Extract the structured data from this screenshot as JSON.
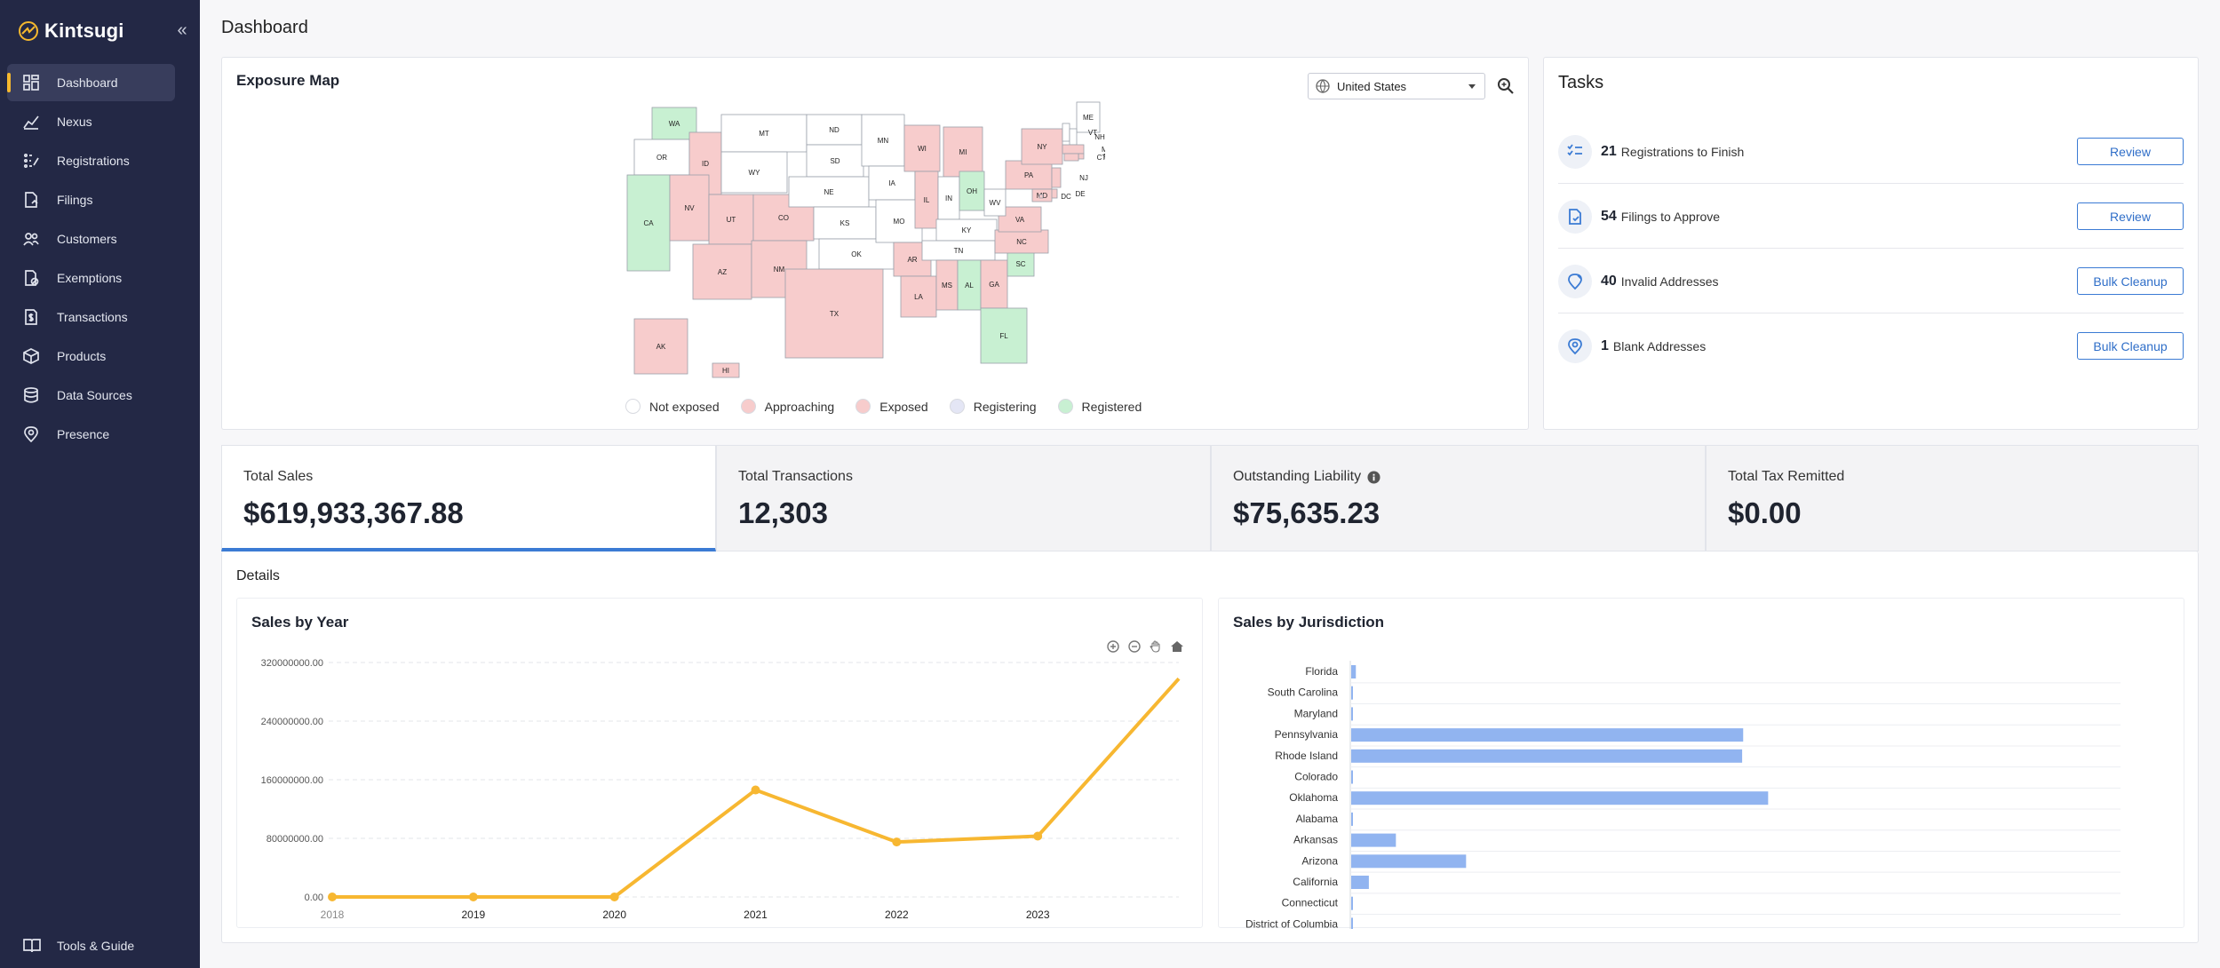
{
  "app": {
    "name": "Kintsugi"
  },
  "page": {
    "title": "Dashboard"
  },
  "sidebar": {
    "items": [
      {
        "label": "Dashboard",
        "icon": "dashboard-icon",
        "active": true
      },
      {
        "label": "Nexus",
        "icon": "trending-icon"
      },
      {
        "label": "Registrations",
        "icon": "registrations-icon"
      },
      {
        "label": "Filings",
        "icon": "filings-icon"
      },
      {
        "label": "Customers",
        "icon": "customers-icon"
      },
      {
        "label": "Exemptions",
        "icon": "exemptions-icon"
      },
      {
        "label": "Transactions",
        "icon": "transactions-icon"
      },
      {
        "label": "Products",
        "icon": "products-icon"
      },
      {
        "label": "Data Sources",
        "icon": "database-icon"
      },
      {
        "label": "Presence",
        "icon": "location-icon"
      }
    ],
    "bottom": {
      "label": "Tools & Guide",
      "icon": "book-icon"
    }
  },
  "exposure_map": {
    "title": "Exposure Map",
    "country": "United States",
    "legend": [
      {
        "label": "Not exposed",
        "color": "#ffffff"
      },
      {
        "label": "Approaching",
        "color": "#f7cccc"
      },
      {
        "label": "Exposed",
        "color": "#f7cccc"
      },
      {
        "label": "Registering",
        "color": "#e4e6f5"
      },
      {
        "label": "Registered",
        "color": "#c8f0d2"
      }
    ],
    "states": [
      {
        "abbr": "WA",
        "status": "registered"
      },
      {
        "abbr": "OR",
        "status": "not_exposed"
      },
      {
        "abbr": "CA",
        "status": "registered"
      },
      {
        "abbr": "ID",
        "status": "exposed"
      },
      {
        "abbr": "NV",
        "status": "exposed"
      },
      {
        "abbr": "MT",
        "status": "not_exposed"
      },
      {
        "abbr": "WY",
        "status": "not_exposed"
      },
      {
        "abbr": "UT",
        "status": "exposed"
      },
      {
        "abbr": "AZ",
        "status": "exposed"
      },
      {
        "abbr": "CO",
        "status": "exposed"
      },
      {
        "abbr": "NM",
        "status": "exposed"
      },
      {
        "abbr": "ND",
        "status": "not_exposed"
      },
      {
        "abbr": "SD",
        "status": "not_exposed"
      },
      {
        "abbr": "NE",
        "status": "not_exposed"
      },
      {
        "abbr": "KS",
        "status": "not_exposed"
      },
      {
        "abbr": "OK",
        "status": "not_exposed"
      },
      {
        "abbr": "TX",
        "status": "exposed"
      },
      {
        "abbr": "MN",
        "status": "not_exposed"
      },
      {
        "abbr": "IA",
        "status": "not_exposed"
      },
      {
        "abbr": "MO",
        "status": "not_exposed"
      },
      {
        "abbr": "AR",
        "status": "exposed"
      },
      {
        "abbr": "LA",
        "status": "exposed"
      },
      {
        "abbr": "WI",
        "status": "exposed"
      },
      {
        "abbr": "IL",
        "status": "exposed"
      },
      {
        "abbr": "MI",
        "status": "exposed"
      },
      {
        "abbr": "IN",
        "status": "not_exposed"
      },
      {
        "abbr": "OH",
        "status": "registered"
      },
      {
        "abbr": "KY",
        "status": "not_exposed"
      },
      {
        "abbr": "TN",
        "status": "not_exposed"
      },
      {
        "abbr": "MS",
        "status": "exposed"
      },
      {
        "abbr": "AL",
        "status": "registered"
      },
      {
        "abbr": "GA",
        "status": "exposed"
      },
      {
        "abbr": "FL",
        "status": "registered"
      },
      {
        "abbr": "SC",
        "status": "registered"
      },
      {
        "abbr": "NC",
        "status": "exposed"
      },
      {
        "abbr": "VA",
        "status": "exposed"
      },
      {
        "abbr": "WV",
        "status": "not_exposed"
      },
      {
        "abbr": "PA",
        "status": "exposed"
      },
      {
        "abbr": "NY",
        "status": "exposed"
      },
      {
        "abbr": "ME",
        "status": "not_exposed"
      },
      {
        "abbr": "VT",
        "status": "not_exposed"
      },
      {
        "abbr": "NH",
        "status": "not_exposed"
      },
      {
        "abbr": "MA",
        "status": "exposed"
      },
      {
        "abbr": "RI",
        "status": "exposed"
      },
      {
        "abbr": "CT",
        "status": "exposed"
      },
      {
        "abbr": "NJ",
        "status": "exposed"
      },
      {
        "abbr": "DE",
        "status": "exposed"
      },
      {
        "abbr": "MD",
        "status": "exposed"
      },
      {
        "abbr": "DC",
        "status": "exposed"
      },
      {
        "abbr": "AK",
        "status": "exposed"
      },
      {
        "abbr": "HI",
        "status": "exposed"
      }
    ]
  },
  "tasks": {
    "title": "Tasks",
    "items": [
      {
        "count": "21",
        "label": "Registrations to Finish",
        "button": "Review",
        "icon": "checklist-icon"
      },
      {
        "count": "54",
        "label": "Filings to Approve",
        "button": "Review",
        "icon": "file-check-icon"
      },
      {
        "count": "40",
        "label": "Invalid Addresses",
        "button": "Bulk Cleanup",
        "icon": "location-alert-icon"
      },
      {
        "count": "1",
        "label": "Blank Addresses",
        "button": "Bulk Cleanup",
        "icon": "location-pin-icon"
      }
    ]
  },
  "kpis": [
    {
      "label": "Total Sales",
      "value": "$619,933,367.88",
      "active": true
    },
    {
      "label": "Total Transactions",
      "value": "12,303"
    },
    {
      "label": "Outstanding Liability",
      "value": "$75,635.23",
      "info": true
    },
    {
      "label": "Total Tax Remitted",
      "value": "$0.00"
    }
  ],
  "details": {
    "title": "Details"
  },
  "chart_data": [
    {
      "type": "line",
      "title": "Sales by Year",
      "x": [
        "2018",
        "2019",
        "2020",
        "2021",
        "2022",
        "2023",
        "2024"
      ],
      "x_tick_labels": [
        "2018",
        "2019",
        "2020",
        "2021",
        "2022",
        "2023"
      ],
      "series": [
        {
          "values": [
            0,
            0,
            0,
            146000000,
            75000000,
            83000000,
            298000000
          ],
          "color": "#f7b731"
        }
      ],
      "y_ticks": [
        "0.00",
        "80000000.00",
        "160000000.00",
        "240000000.00",
        "320000000.00"
      ],
      "ylim": [
        0,
        320000000
      ],
      "grid": true,
      "toolbar": [
        "zoom-in-icon",
        "zoom-out-icon",
        "pan-hand-icon",
        "home-icon"
      ]
    },
    {
      "type": "bar",
      "orientation": "horizontal",
      "title": "Sales by Jurisdiction",
      "categories": [
        "Florida",
        "South Carolina",
        "Maryland",
        "Pennsylvania",
        "Rhode Island",
        "Colorado",
        "Oklahoma",
        "Alabama",
        "Arkansas",
        "Arizona",
        "California",
        "Connecticut",
        "District of Columbia"
      ],
      "values": [
        9,
        2,
        1,
        754,
        752,
        1,
        802,
        1,
        86,
        221,
        34,
        2,
        1
      ],
      "xlim": [
        0,
        1000
      ],
      "color": "#91b4f0",
      "grid": true
    }
  ]
}
